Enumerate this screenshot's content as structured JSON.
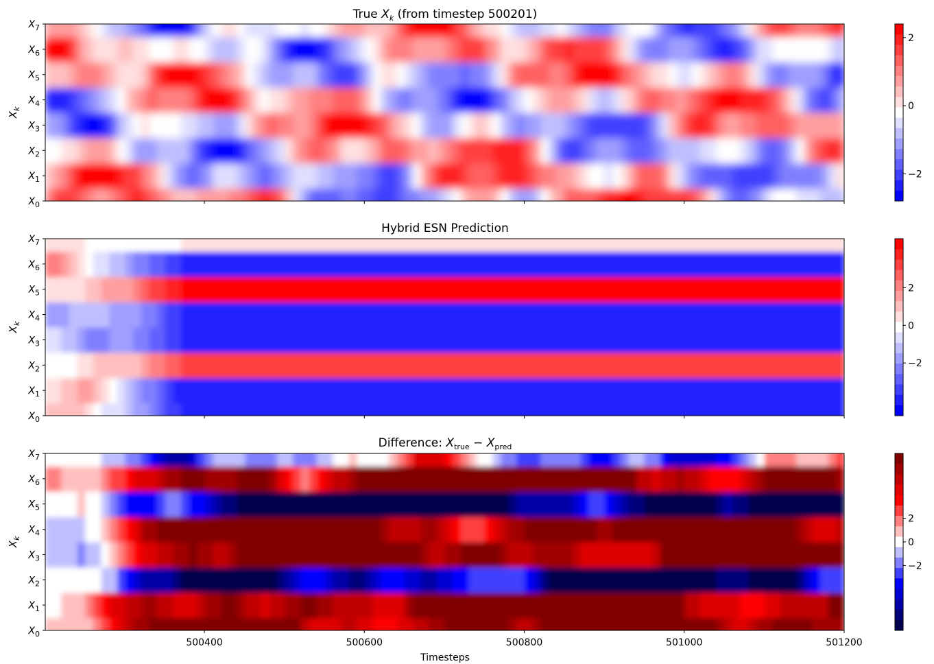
{
  "chart_data": [
    {
      "type": "heatmap",
      "title": "True X_k (from timestep 500201)",
      "title_parts": {
        "before": "True ",
        "var": "X",
        "sub": "k",
        "after": " (from timestep 500201)"
      },
      "ylabel": "X_k",
      "y_ticks": [
        {
          "var": "X",
          "sub": "0"
        },
        {
          "var": "X",
          "sub": "1"
        },
        {
          "var": "X",
          "sub": "2"
        },
        {
          "var": "X",
          "sub": "3"
        },
        {
          "var": "X",
          "sub": "4"
        },
        {
          "var": "X",
          "sub": "5"
        },
        {
          "var": "X",
          "sub": "6"
        },
        {
          "var": "X",
          "sub": "7"
        }
      ],
      "colormap": "bwr",
      "vmin": -2.8,
      "vmax": 2.4,
      "colorbar_ticks": [
        "2",
        "0",
        "−2"
      ],
      "colorbar_values": [
        2,
        0,
        -2
      ],
      "pattern": "chaotic",
      "xlim": [
        500201,
        501200
      ]
    },
    {
      "type": "heatmap",
      "title": "Hybrid ESN Prediction",
      "ylabel": "X_k",
      "y_ticks": [
        {
          "var": "X",
          "sub": "0"
        },
        {
          "var": "X",
          "sub": "1"
        },
        {
          "var": "X",
          "sub": "2"
        },
        {
          "var": "X",
          "sub": "3"
        },
        {
          "var": "X",
          "sub": "4"
        },
        {
          "var": "X",
          "sub": "5"
        },
        {
          "var": "X",
          "sub": "6"
        },
        {
          "var": "X",
          "sub": "7"
        }
      ],
      "colormap": "bwr",
      "vmin": -4.8,
      "vmax": 4.6,
      "colorbar_ticks": [
        "2",
        "0",
        "−2"
      ],
      "colorbar_values": [
        2,
        0,
        -2
      ],
      "pattern": "settle_to_bands",
      "steady_state": [
        -4.5,
        -4.5,
        3.5,
        -4.5,
        -4.5,
        4.5,
        -4.5,
        0.5
      ],
      "xlim": [
        500201,
        501200
      ]
    },
    {
      "type": "heatmap",
      "title": "Difference: X_true − X_pred",
      "title_parts": {
        "before": "Difference: ",
        "var1": "X",
        "sub1": "true",
        "op": " − ",
        "var2": "X",
        "sub2": "pred"
      },
      "xlabel": "Timesteps",
      "ylabel": "X_k",
      "y_ticks": [
        {
          "var": "X",
          "sub": "0"
        },
        {
          "var": "X",
          "sub": "1"
        },
        {
          "var": "X",
          "sub": "2"
        },
        {
          "var": "X",
          "sub": "3"
        },
        {
          "var": "X",
          "sub": "4"
        },
        {
          "var": "X",
          "sub": "5"
        },
        {
          "var": "X",
          "sub": "6"
        },
        {
          "var": "X",
          "sub": "7"
        }
      ],
      "x_ticks": [
        "500400",
        "500600",
        "500800",
        "501000",
        "501200"
      ],
      "x_tick_values": [
        500400,
        500600,
        500800,
        501000,
        501200
      ],
      "colormap": "seismic",
      "vmin": -7.5,
      "vmax": 7.5,
      "colorbar_ticks": [
        "2",
        "0",
        "−2"
      ],
      "colorbar_values": [
        2,
        0,
        -2
      ],
      "pattern": "difference_bands",
      "xlim": [
        500201,
        501200
      ]
    }
  ]
}
